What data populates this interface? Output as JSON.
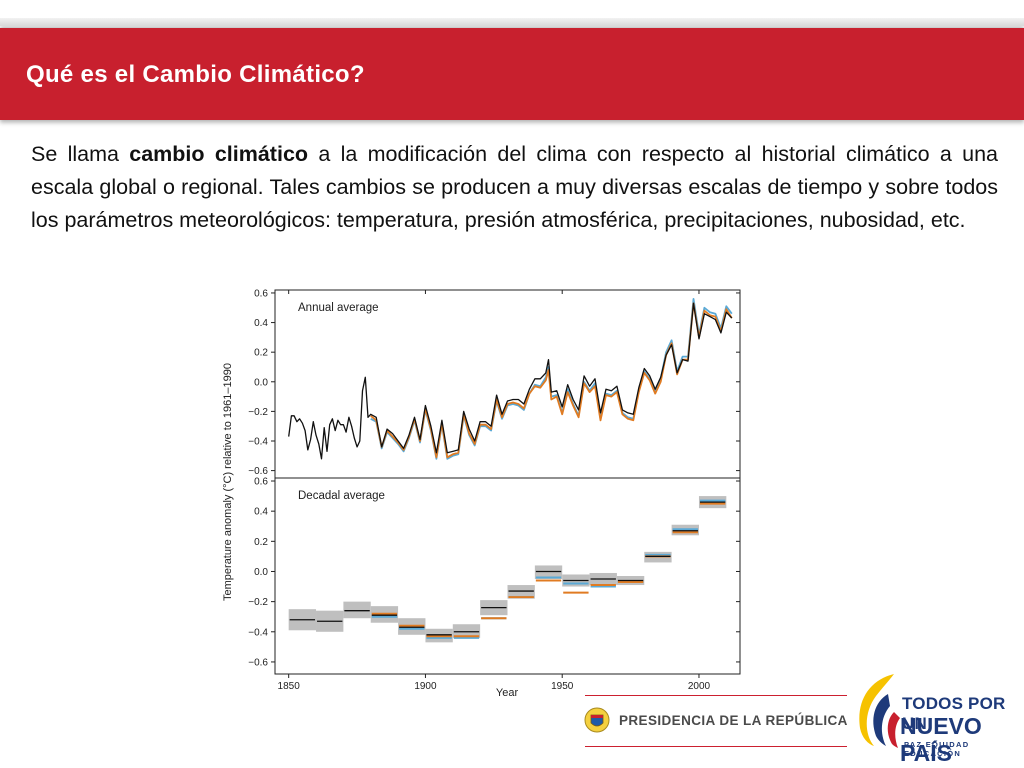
{
  "header": {
    "title": "Qué es el Cambio Climático?"
  },
  "intro": {
    "before": "Se llama ",
    "bold": "cambio climático",
    "after": " a la modificación del clima con respecto al historial climático a una escala global o regional. Tales cambios se producen a muy diversas escalas de tiempo y sobre todos los parámetros meteorológicos: temperatura, presión atmosférica, precipitaciones, nubosidad, etc."
  },
  "colors": {
    "header_red": "#c8202e",
    "series_black": "#111111",
    "series_orange": "#e07b22",
    "series_blue": "#5aa9d6",
    "uncertainty_gray": "#bfbfbf",
    "logo_blue": "#1e3a7a"
  },
  "chart_data": [
    {
      "type": "line",
      "panel_label": "Annual average",
      "ylabel": "Temperature anomaly (°C) relative to 1961–1990",
      "xlim": [
        1845,
        2015
      ],
      "ylim": [
        -0.65,
        0.62
      ],
      "yticks": [
        0.6,
        0.4,
        0.2,
        0.0,
        -0.2,
        -0.4,
        -0.6
      ],
      "ytick_labels": [
        "0.6",
        "0.4",
        "0.2",
        "0.0",
        "−0.2",
        "−0.4",
        "−0.6"
      ],
      "grid": false,
      "series": [
        {
          "color": "#111111",
          "x": [
            1850,
            1851,
            1852,
            1853,
            1854,
            1855,
            1856,
            1857,
            1858,
            1859,
            1860,
            1861,
            1862,
            1863,
            1864,
            1865,
            1866,
            1867,
            1868,
            1869,
            1870,
            1871,
            1872,
            1873,
            1874,
            1875,
            1876,
            1877,
            1878,
            1879,
            1880,
            1882,
            1884,
            1886,
            1888,
            1890,
            1892,
            1894,
            1896,
            1898,
            1900,
            1902,
            1904,
            1906,
            1908,
            1910,
            1912,
            1914,
            1916,
            1918,
            1920,
            1922,
            1924,
            1926,
            1928,
            1930,
            1932,
            1934,
            1936,
            1938,
            1940,
            1942,
            1944,
            1945,
            1946,
            1948,
            1950,
            1952,
            1954,
            1956,
            1958,
            1960,
            1962,
            1964,
            1966,
            1968,
            1970,
            1972,
            1974,
            1976,
            1978,
            1980,
            1982,
            1984,
            1986,
            1988,
            1990,
            1992,
            1994,
            1996,
            1998,
            2000,
            2002,
            2004,
            2006,
            2008,
            2010,
            2012
          ],
          "y": [
            -0.37,
            -0.23,
            -0.23,
            -0.27,
            -0.25,
            -0.28,
            -0.33,
            -0.46,
            -0.39,
            -0.27,
            -0.36,
            -0.42,
            -0.52,
            -0.31,
            -0.47,
            -0.29,
            -0.25,
            -0.33,
            -0.26,
            -0.29,
            -0.29,
            -0.34,
            -0.24,
            -0.3,
            -0.38,
            -0.44,
            -0.4,
            -0.06,
            0.03,
            -0.24,
            -0.22,
            -0.24,
            -0.44,
            -0.32,
            -0.35,
            -0.4,
            -0.45,
            -0.36,
            -0.24,
            -0.39,
            -0.16,
            -0.3,
            -0.48,
            -0.26,
            -0.48,
            -0.47,
            -0.46,
            -0.2,
            -0.32,
            -0.4,
            -0.27,
            -0.27,
            -0.3,
            -0.09,
            -0.22,
            -0.13,
            -0.12,
            -0.12,
            -0.15,
            -0.05,
            0.02,
            0.02,
            0.06,
            0.15,
            -0.07,
            -0.06,
            -0.17,
            -0.02,
            -0.12,
            -0.19,
            0.04,
            -0.03,
            0.02,
            -0.21,
            -0.05,
            -0.06,
            -0.03,
            -0.19,
            -0.21,
            -0.22,
            -0.04,
            0.09,
            0.04,
            -0.05,
            0.03,
            0.18,
            0.25,
            0.06,
            0.15,
            0.14,
            0.53,
            0.29,
            0.46,
            0.44,
            0.42,
            0.33,
            0.47,
            0.43
          ]
        },
        {
          "color": "#5aa9d6",
          "x": [
            1880,
            1882,
            1884,
            1886,
            1888,
            1890,
            1892,
            1894,
            1896,
            1898,
            1900,
            1902,
            1904,
            1906,
            1908,
            1910,
            1912,
            1914,
            1916,
            1918,
            1920,
            1922,
            1924,
            1926,
            1928,
            1930,
            1932,
            1934,
            1936,
            1938,
            1940,
            1942,
            1944,
            1945,
            1946,
            1948,
            1950,
            1952,
            1954,
            1956,
            1958,
            1960,
            1962,
            1964,
            1966,
            1968,
            1970,
            1972,
            1974,
            1976,
            1978,
            1980,
            1982,
            1984,
            1986,
            1988,
            1990,
            1992,
            1994,
            1996,
            1998,
            2000,
            2002,
            2004,
            2006,
            2008,
            2010,
            2012
          ],
          "y": [
            -0.25,
            -0.27,
            -0.45,
            -0.34,
            -0.38,
            -0.42,
            -0.47,
            -0.38,
            -0.26,
            -0.41,
            -0.19,
            -0.33,
            -0.52,
            -0.29,
            -0.52,
            -0.5,
            -0.49,
            -0.23,
            -0.36,
            -0.43,
            -0.3,
            -0.3,
            -0.33,
            -0.13,
            -0.25,
            -0.16,
            -0.15,
            -0.16,
            -0.19,
            -0.08,
            -0.02,
            -0.03,
            0.03,
            0.1,
            -0.1,
            -0.09,
            -0.21,
            -0.05,
            -0.15,
            -0.23,
            0.0,
            -0.06,
            -0.01,
            -0.25,
            -0.08,
            -0.09,
            -0.06,
            -0.21,
            -0.24,
            -0.25,
            -0.06,
            0.07,
            0.02,
            -0.07,
            0.02,
            0.2,
            0.28,
            0.07,
            0.17,
            0.17,
            0.56,
            0.32,
            0.5,
            0.47,
            0.46,
            0.36,
            0.51,
            0.46
          ]
        },
        {
          "color": "#e07b22",
          "x": [
            1880,
            1882,
            1884,
            1886,
            1888,
            1890,
            1892,
            1894,
            1896,
            1898,
            1900,
            1902,
            1904,
            1906,
            1908,
            1910,
            1912,
            1914,
            1916,
            1918,
            1920,
            1922,
            1924,
            1926,
            1928,
            1930,
            1932,
            1934,
            1936,
            1938,
            1940,
            1942,
            1944,
            1945,
            1946,
            1948,
            1950,
            1952,
            1954,
            1956,
            1958,
            1960,
            1962,
            1964,
            1966,
            1968,
            1970,
            1972,
            1974,
            1976,
            1978,
            1980,
            1982,
            1984,
            1986,
            1988,
            1990,
            1992,
            1994,
            1996,
            1998,
            2000,
            2002,
            2004,
            2006,
            2008,
            2010,
            2012
          ],
          "y": [
            -0.23,
            -0.26,
            -0.44,
            -0.33,
            -0.37,
            -0.41,
            -0.46,
            -0.37,
            -0.25,
            -0.4,
            -0.18,
            -0.32,
            -0.51,
            -0.28,
            -0.51,
            -0.49,
            -0.48,
            -0.22,
            -0.35,
            -0.42,
            -0.29,
            -0.29,
            -0.32,
            -0.12,
            -0.24,
            -0.15,
            -0.14,
            -0.15,
            -0.18,
            -0.08,
            -0.03,
            -0.04,
            0.01,
            0.08,
            -0.12,
            -0.1,
            -0.22,
            -0.07,
            -0.16,
            -0.24,
            -0.01,
            -0.07,
            -0.03,
            -0.26,
            -0.09,
            -0.1,
            -0.07,
            -0.22,
            -0.25,
            -0.26,
            -0.07,
            0.06,
            0.01,
            -0.08,
            0.0,
            0.18,
            0.26,
            0.05,
            0.15,
            0.15,
            0.53,
            0.3,
            0.48,
            0.45,
            0.44,
            0.34,
            0.49,
            0.43
          ]
        }
      ]
    },
    {
      "type": "bar",
      "panel_label": "Decadal average",
      "ylabel": "Temperature anomaly (°C) relative to 1961–1990",
      "xlabel": "Year",
      "xlim": [
        1845,
        2015
      ],
      "ylim": [
        -0.68,
        0.62
      ],
      "xticks": [
        1850,
        1900,
        1950,
        2000
      ],
      "xtick_labels": [
        "1850",
        "1900",
        "1950",
        "2000"
      ],
      "yticks": [
        0.6,
        0.4,
        0.2,
        0.0,
        -0.2,
        -0.4,
        -0.6
      ],
      "ytick_labels": [
        "0.6",
        "0.4",
        "0.2",
        "0.0",
        "−0.2",
        "−0.4",
        "−0.6"
      ],
      "grid": false,
      "decades": [
        {
          "start": 1850,
          "black": -0.32,
          "unc": [
            -0.39,
            -0.25
          ]
        },
        {
          "start": 1860,
          "black": -0.33,
          "unc": [
            -0.4,
            -0.26
          ]
        },
        {
          "start": 1870,
          "black": -0.26,
          "unc": [
            -0.31,
            -0.2
          ]
        },
        {
          "start": 1880,
          "black": -0.29,
          "orange": -0.28,
          "blue": -0.3,
          "unc": [
            -0.34,
            -0.23
          ]
        },
        {
          "start": 1890,
          "black": -0.37,
          "orange": -0.36,
          "blue": -0.38,
          "unc": [
            -0.42,
            -0.31
          ]
        },
        {
          "start": 1900,
          "black": -0.42,
          "orange": -0.43,
          "blue": -0.44,
          "unc": [
            -0.47,
            -0.38
          ]
        },
        {
          "start": 1910,
          "black": -0.4,
          "orange": -0.43,
          "blue": -0.44,
          "unc": [
            -0.44,
            -0.35
          ]
        },
        {
          "start": 1920,
          "black": -0.24,
          "orange": -0.31,
          "blue": -0.31,
          "unc": [
            -0.29,
            -0.19
          ]
        },
        {
          "start": 1930,
          "black": -0.13,
          "orange": -0.17,
          "blue": -0.17,
          "unc": [
            -0.18,
            -0.09
          ]
        },
        {
          "start": 1940,
          "black": 0.0,
          "orange": -0.06,
          "blue": -0.04,
          "unc": [
            -0.05,
            0.04
          ]
        },
        {
          "start": 1950,
          "black": -0.06,
          "orange": -0.14,
          "blue": -0.08,
          "unc": [
            -0.1,
            -0.02
          ]
        },
        {
          "start": 1960,
          "black": -0.05,
          "orange": -0.09,
          "blue": -0.1,
          "unc": [
            -0.09,
            -0.01
          ]
        },
        {
          "start": 1970,
          "black": -0.06,
          "orange": -0.07,
          "blue": -0.07,
          "unc": [
            -0.09,
            -0.03
          ]
        },
        {
          "start": 1980,
          "black": 0.1,
          "orange": 0.1,
          "blue": 0.11,
          "unc": [
            0.06,
            0.13
          ]
        },
        {
          "start": 1990,
          "black": 0.27,
          "orange": 0.26,
          "blue": 0.28,
          "unc": [
            0.24,
            0.31
          ]
        },
        {
          "start": 2000,
          "black": 0.46,
          "orange": 0.45,
          "blue": 0.47,
          "unc": [
            0.42,
            0.5
          ]
        }
      ]
    }
  ],
  "footer": {
    "presidencia": "PRESIDENCIA DE LA REPÚBLICA",
    "logo_line1": "TODOS POR UN",
    "logo_line2": "NUEVO PAÍS",
    "logo_line3": "PAZ  EQUIDAD  EDUCACIÓN"
  }
}
